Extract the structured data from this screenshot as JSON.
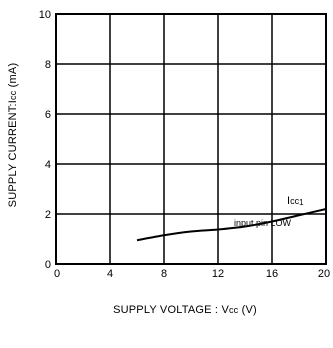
{
  "chart_data": {
    "type": "line",
    "xlabel": "SUPPLY  VOLTAGE : Vcc  (V)",
    "ylabel": "SUPPLY  CURRENT:Icc  (mA)",
    "xlim": [
      0,
      20
    ],
    "ylim": [
      0,
      10
    ],
    "xticks": [
      "0",
      "4",
      "8",
      "12",
      "16",
      "20"
    ],
    "yticks": [
      "0",
      "2",
      "4",
      "6",
      "8",
      "10"
    ],
    "grid": true,
    "series": [
      {
        "name": "Icc1",
        "x": [
          6,
          8,
          10,
          12,
          14,
          16,
          18,
          20
        ],
        "y": [
          0.95,
          1.15,
          1.3,
          1.38,
          1.5,
          1.7,
          1.95,
          2.2
        ]
      }
    ],
    "annotations": {
      "series_label": "Icc1",
      "condition": "input pin LOW"
    },
    "colors": {
      "line": "#000000",
      "grid": "#000000",
      "background": "#ffffff"
    }
  }
}
